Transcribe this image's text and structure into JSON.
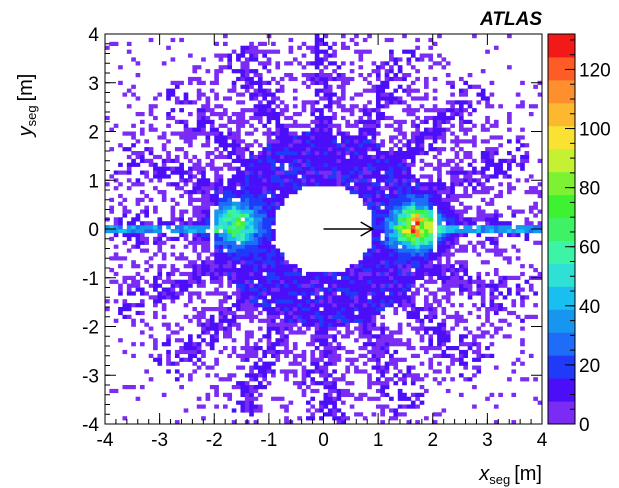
{
  "chart_data": {
    "type": "heatmap",
    "title": "",
    "experiment_label": "ATLAS",
    "xlabel": {
      "var": "x",
      "sub": "seg",
      "unit": "[m]"
    },
    "ylabel": {
      "var": "y",
      "sub": "seg",
      "unit": "[m]"
    },
    "xlim": [
      -4,
      4
    ],
    "ylim": [
      -4,
      4
    ],
    "x_ticks": [
      -4,
      -3,
      -2,
      -1,
      0,
      1,
      2,
      3,
      4
    ],
    "y_ticks": [
      -4,
      -3,
      -2,
      -1,
      0,
      1,
      2,
      3,
      4
    ],
    "colorbar": {
      "min": 0,
      "max": 132,
      "ticks": [
        0,
        20,
        40,
        60,
        80,
        100,
        120
      ]
    },
    "bins_per_axis": 100,
    "structure": {
      "hole_radius": 0.92,
      "inner_ring_radius": 2.0,
      "outer_radius": 4.1,
      "spokes": 16,
      "background_level": 6,
      "inner_ring_level": 12,
      "hotspots": [
        {
          "x": -1.6,
          "y": 0.1,
          "peak": 75
        },
        {
          "x": 1.7,
          "y": 0.05,
          "peak": 125
        }
      ]
    },
    "annotation": {
      "type": "arrow",
      "from": [
        0,
        0
      ],
      "to": [
        0.9,
        0
      ]
    }
  }
}
